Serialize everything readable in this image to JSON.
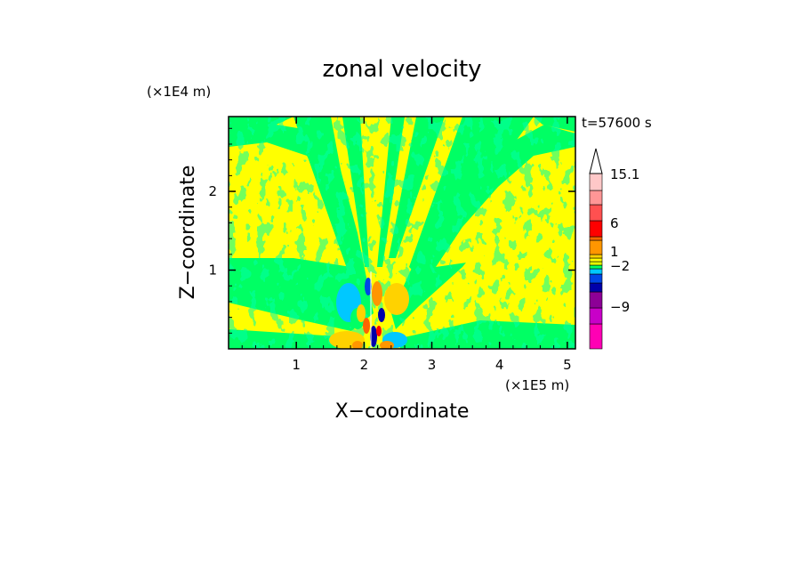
{
  "chart_data": {
    "type": "heatmap",
    "title": "zonal velocity",
    "xlabel": "X−coordinate",
    "ylabel": "Z−coordinate",
    "x_unit": "(×1E5 m)",
    "y_unit": "(×1E4 m)",
    "time_label": "t=57600 s",
    "xlim": [
      0,
      5.12
    ],
    "ylim": [
      0,
      2.95
    ],
    "x_ticks": [
      "1",
      "2",
      "3",
      "4",
      "5"
    ],
    "x_tick_values": [
      1,
      2,
      3,
      4,
      5
    ],
    "y_ticks": [
      "1",
      "2"
    ],
    "y_tick_values": [
      1,
      2
    ],
    "colorbar": {
      "colors": [
        "#ff00b4",
        "#c800c8",
        "#8c0096",
        "#0000aa",
        "#0046e6",
        "#00c8ff",
        "#00ff64",
        "#e6ff00",
        "#ffff00",
        "#ffd200",
        "#ff9600",
        "#ff6400",
        "#ff0000",
        "#ff5050",
        "#ff9696",
        "#ffc8c8"
      ],
      "extend_top": true,
      "labels": [
        "15.1",
        "6",
        "1",
        "−2",
        "−9"
      ],
      "label_values": [
        15.1,
        6,
        1,
        -2,
        -9
      ]
    },
    "field": {
      "background_level": "yellow (~0 to 1)",
      "features": "V-shaped gravity-wave pattern centered near x=2.1 with alternating green (slightly negative) and yellow bands; strong blue/red/orange cells below z=1 near x=2.0-2.3"
    }
  }
}
